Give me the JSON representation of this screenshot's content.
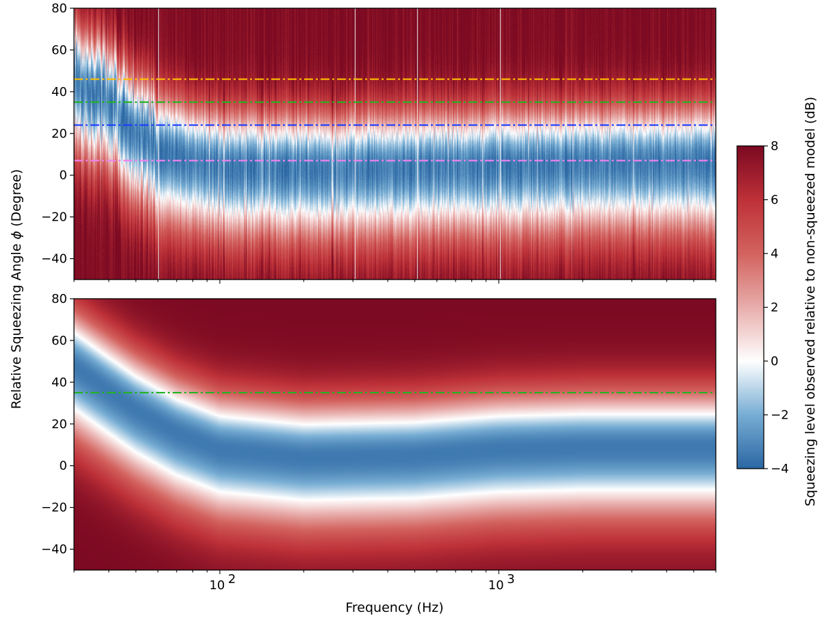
{
  "chart_data": [
    {
      "type": "heatmap",
      "panel": "top",
      "xscale": "log",
      "xlim": [
        30,
        6000
      ],
      "ylim": [
        -50,
        80
      ],
      "yticks": [
        -40,
        -20,
        0,
        20,
        40,
        60,
        80
      ],
      "xtick_labels_shown": false,
      "squeezing_band_center_deg": {
        "frequency_hz": [
          30,
          40,
          50,
          60,
          100,
          200,
          500,
          1000,
          3000,
          6000
        ],
        "angle_deg": [
          45,
          38,
          22,
          12,
          4,
          3,
          4,
          5,
          6,
          6
        ]
      },
      "narrow_artifact_lines_hz": [
        60,
        305,
        510,
        1010
      ],
      "reference_lines": [
        {
          "angle_deg": 46,
          "color": "#ffc000",
          "style": "dash-dot"
        },
        {
          "angle_deg": 35,
          "color": "#22b422",
          "style": "dash-dot"
        },
        {
          "angle_deg": 24,
          "color": "#1a3cff",
          "style": "dash-dot"
        },
        {
          "angle_deg": 7,
          "color": "#ee82ee",
          "style": "dash-dot"
        }
      ]
    },
    {
      "type": "heatmap",
      "panel": "bottom",
      "xscale": "log",
      "xlim": [
        30,
        6000
      ],
      "ylim": [
        -50,
        80
      ],
      "yticks": [
        -40,
        -20,
        0,
        20,
        40,
        60,
        80
      ],
      "xticks": [
        100,
        1000
      ],
      "xtick_labels": [
        "10",
        "10"
      ],
      "xtick_exponents": [
        "2",
        "3"
      ],
      "squeezing_band_center_deg": {
        "frequency_hz": [
          30,
          40,
          50,
          70,
          100,
          200,
          500,
          1000,
          2000,
          6000
        ],
        "angle_deg": [
          48,
          36,
          27,
          16,
          8,
          4,
          5,
          8,
          9,
          9
        ]
      },
      "reference_lines": [
        {
          "angle_deg": 35,
          "color": "#22b422",
          "style": "dash-dot"
        }
      ]
    }
  ],
  "xlabel": "Frequency (Hz)",
  "ylabel_prefix": "Relative Squeezing Angle ",
  "ylabel_symbol": "ϕ",
  "ylabel_suffix": " (Degree)",
  "colorbar": {
    "label": "Squeezing level observed relative to non-squeezed model (dB)",
    "range": [
      -4,
      8
    ],
    "ticks": [
      -4,
      -2,
      0,
      2,
      4,
      6,
      8
    ],
    "tick_labels": [
      "−4",
      "−2",
      "0",
      "2",
      "4",
      "6",
      "8"
    ],
    "colormap": "red-white-blue diverging (red high, blue low, white at 0)",
    "stops": [
      {
        "value": -4,
        "color": "#2b67a3"
      },
      {
        "value": -2,
        "color": "#78aed4"
      },
      {
        "value": 0,
        "color": "#ffffff"
      },
      {
        "value": 2,
        "color": "#e8aeac"
      },
      {
        "value": 4,
        "color": "#d3635f"
      },
      {
        "value": 6,
        "color": "#be3138"
      },
      {
        "value": 8,
        "color": "#7c0a22"
      }
    ]
  },
  "ytick_labels": [
    "−40",
    "−20",
    "0",
    "20",
    "40",
    "60",
    "80"
  ]
}
